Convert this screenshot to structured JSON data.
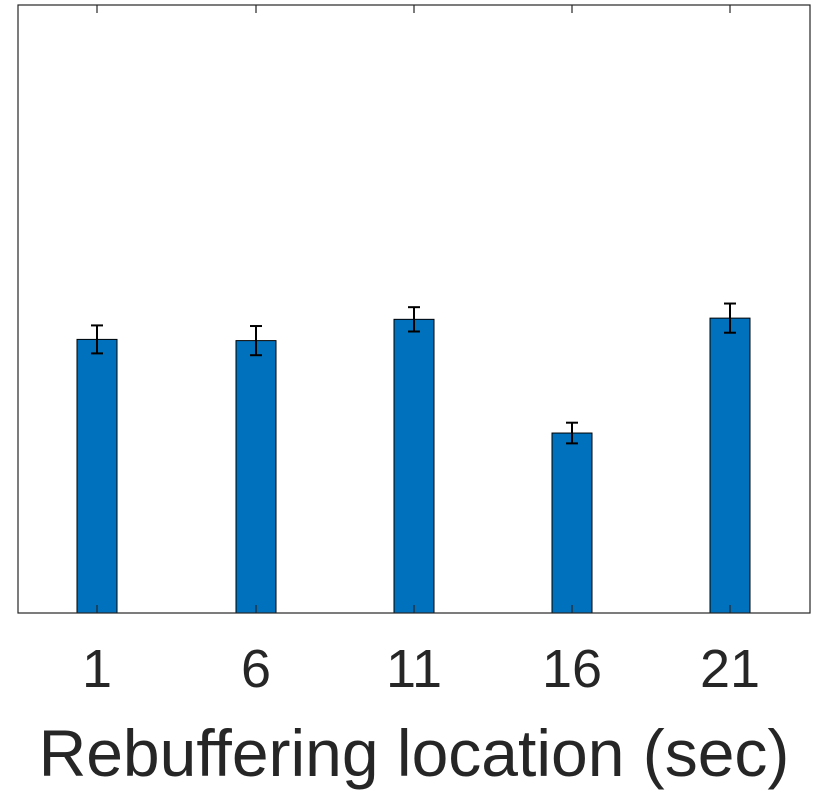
{
  "chart_data": {
    "type": "bar",
    "categories": [
      "1",
      "6",
      "11",
      "16",
      "21"
    ],
    "values": [
      0.45,
      0.448,
      0.483,
      0.296,
      0.485
    ],
    "errors": [
      0.023,
      0.024,
      0.02,
      0.017,
      0.024
    ],
    "ylim": [
      0,
      1
    ],
    "xlabel": "Rebuffering location (sec)",
    "ylabel": "",
    "title": "",
    "bar_color": "#0072BD",
    "error_color": "#000000",
    "axis_color": "#262626",
    "grid": false
  }
}
